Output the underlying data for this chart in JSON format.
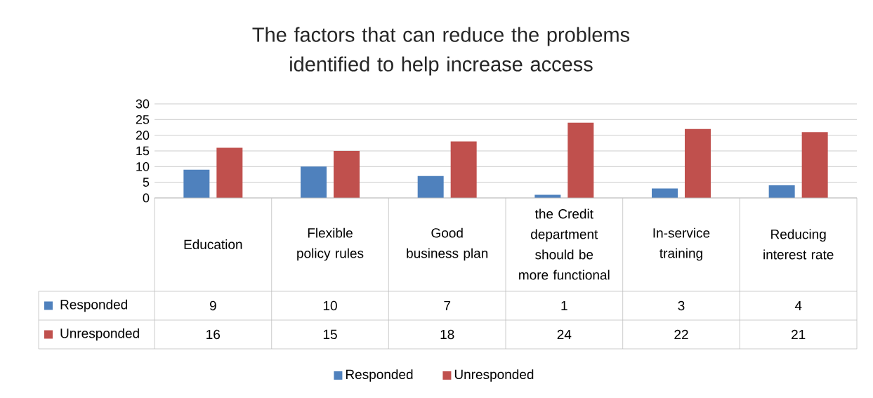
{
  "chart_data": {
    "type": "bar",
    "title": "The factors that can reduce the problems identified to help increase access",
    "categories": [
      "Education",
      "Flexible policy rules",
      "Good business plan",
      "the Credit department should be more functional",
      "In-service training",
      "Reducing interest rate"
    ],
    "series": [
      {
        "name": "Responded",
        "color": "#4f81bd",
        "values": [
          9,
          10,
          7,
          1,
          3,
          4
        ]
      },
      {
        "name": "Unresponded",
        "color": "#c0504d",
        "values": [
          16,
          15,
          18,
          24,
          22,
          21
        ]
      }
    ],
    "ylim": [
      0,
      30
    ],
    "yticks": [
      0,
      5,
      10,
      15,
      20,
      25,
      30
    ],
    "grid": "y",
    "data_labels": true,
    "legend": "bottom"
  }
}
